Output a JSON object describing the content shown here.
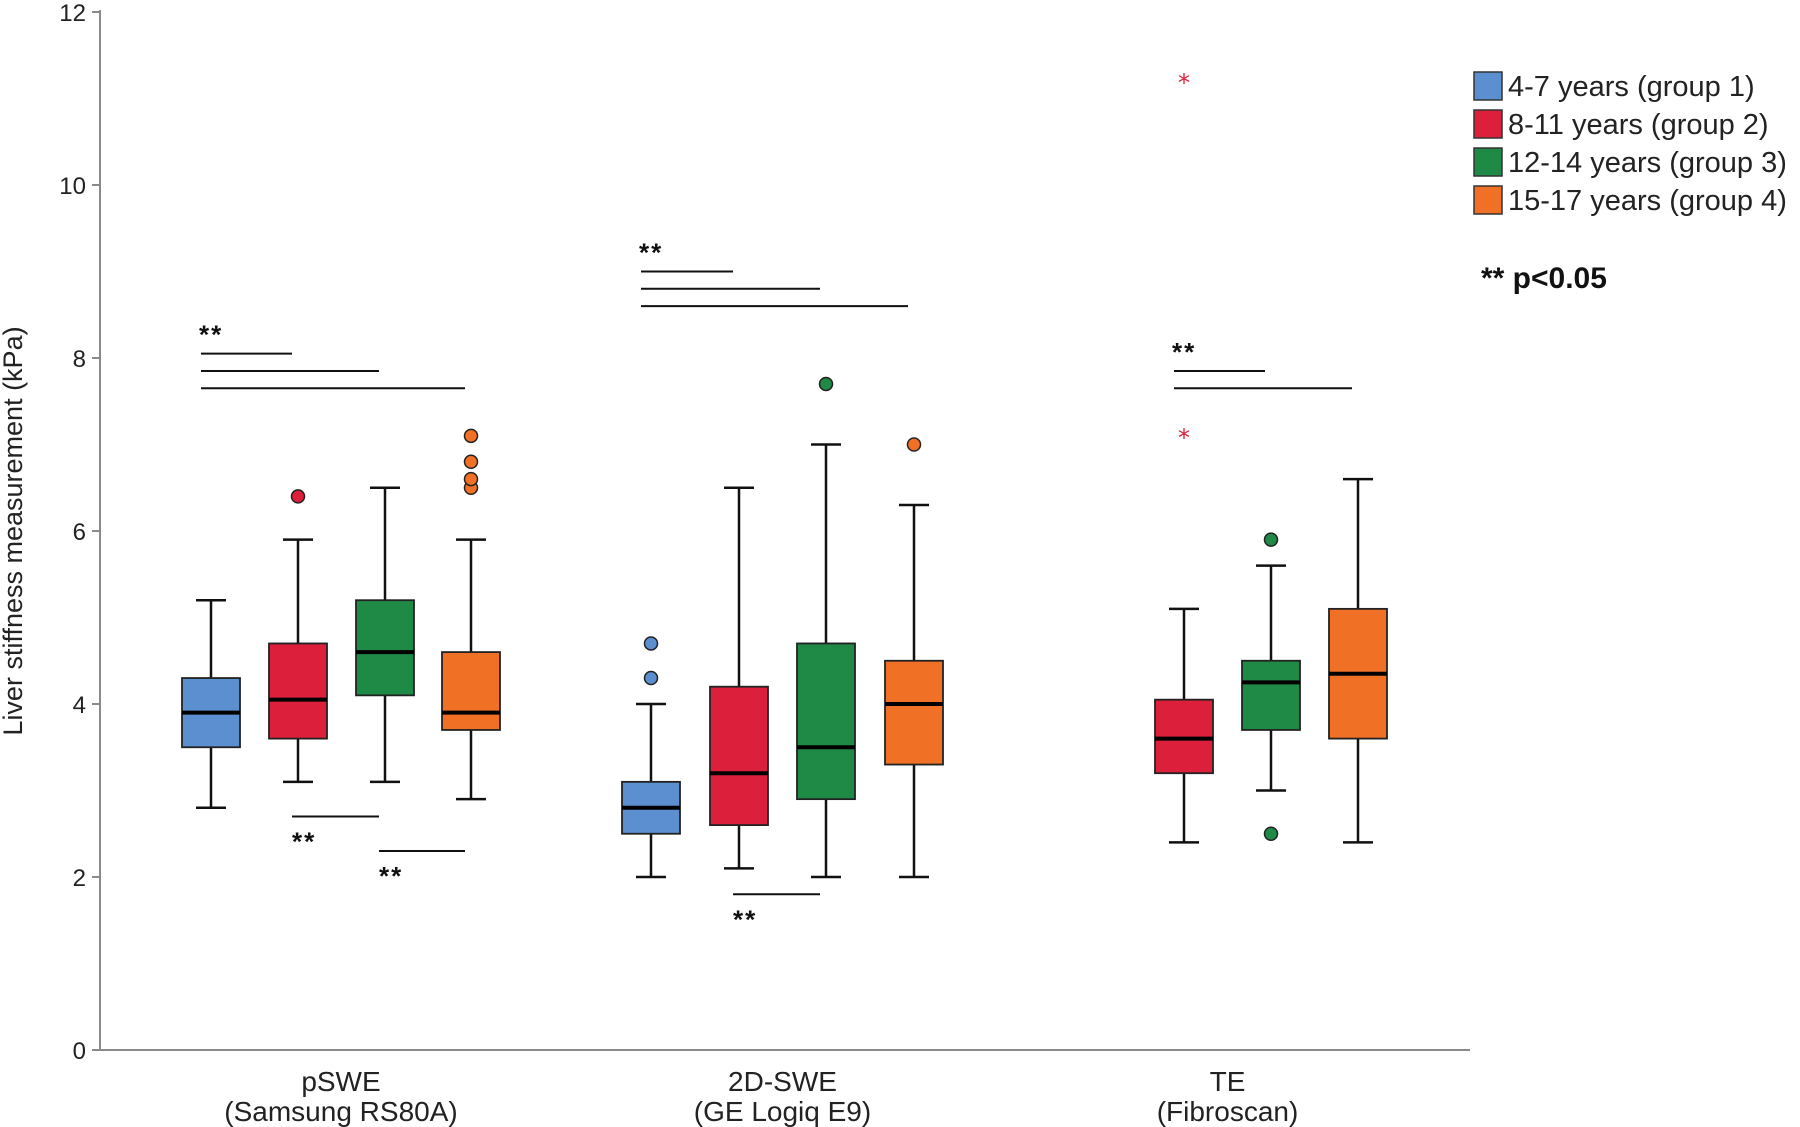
{
  "chart_data": {
    "type": "box",
    "title": "",
    "xlabel": "",
    "ylabel": "Liver stiffness measurement  (kPa)",
    "ylim": [
      0,
      12
    ],
    "yticks": [
      "0",
      "2",
      "4",
      "6",
      "8",
      "10",
      "12"
    ],
    "categories": [
      {
        "line1": "pSWE",
        "line2": "(Samsung RS80A)"
      },
      {
        "line1": "2D-SWE",
        "line2": "(GE Logiq E9)"
      },
      {
        "line1": "TE",
        "line2": "(Fibroscan)"
      }
    ],
    "series": [
      {
        "name": "4-7 years (group 1)",
        "color": "#5b8fd0"
      },
      {
        "name": "8-11 years (group 2)",
        "color": "#dc1f3a"
      },
      {
        "name": "12-14 years (group 3)",
        "color": "#1f8a45"
      },
      {
        "name": "15-17 years (group 4)",
        "color": "#f07126"
      }
    ],
    "boxes": [
      {
        "category": 0,
        "series": 0,
        "whisker_low": 2.8,
        "q1": 3.5,
        "median": 3.9,
        "q3": 4.3,
        "whisker_high": 5.2,
        "outliers": [],
        "extremes": []
      },
      {
        "category": 0,
        "series": 1,
        "whisker_low": 3.1,
        "q1": 3.6,
        "median": 4.05,
        "q3": 4.7,
        "whisker_high": 5.9,
        "outliers": [
          6.4
        ],
        "extremes": []
      },
      {
        "category": 0,
        "series": 2,
        "whisker_low": 3.1,
        "q1": 4.1,
        "median": 4.6,
        "q3": 5.2,
        "whisker_high": 6.5,
        "outliers": [],
        "extremes": []
      },
      {
        "category": 0,
        "series": 3,
        "whisker_low": 2.9,
        "q1": 3.7,
        "median": 3.9,
        "q3": 4.6,
        "whisker_high": 5.9,
        "outliers": [
          6.5,
          6.6,
          6.8,
          7.1
        ],
        "extremes": []
      },
      {
        "category": 1,
        "series": 0,
        "whisker_low": 2.0,
        "q1": 2.5,
        "median": 2.8,
        "q3": 3.1,
        "whisker_high": 4.0,
        "outliers": [
          4.3,
          4.7
        ],
        "extremes": []
      },
      {
        "category": 1,
        "series": 1,
        "whisker_low": 2.1,
        "q1": 2.6,
        "median": 3.2,
        "q3": 4.2,
        "whisker_high": 6.5,
        "outliers": [],
        "extremes": []
      },
      {
        "category": 1,
        "series": 2,
        "whisker_low": 2.0,
        "q1": 2.9,
        "median": 3.5,
        "q3": 4.7,
        "whisker_high": 7.0,
        "outliers": [
          7.7
        ],
        "extremes": []
      },
      {
        "category": 1,
        "series": 3,
        "whisker_low": 2.0,
        "q1": 3.3,
        "median": 4.0,
        "q3": 4.5,
        "whisker_high": 6.3,
        "outliers": [
          7.0
        ],
        "extremes": []
      },
      {
        "category": 2,
        "series": 1,
        "whisker_low": 2.4,
        "q1": 3.2,
        "median": 3.6,
        "q3": 4.05,
        "whisker_high": 5.1,
        "outliers": [],
        "extremes": [
          7.1,
          11.2
        ]
      },
      {
        "category": 2,
        "series": 2,
        "whisker_low": 3.0,
        "q1": 3.7,
        "median": 4.25,
        "q3": 4.5,
        "whisker_high": 5.6,
        "outliers": [
          2.5,
          5.9
        ],
        "extremes": []
      },
      {
        "category": 2,
        "series": 3,
        "whisker_low": 2.4,
        "q1": 3.6,
        "median": 4.35,
        "q3": 5.1,
        "whisker_high": 6.6,
        "outliers": [],
        "extremes": []
      }
    ],
    "significance": [
      {
        "category": 0,
        "from": 0,
        "to": 1,
        "label_position": "above"
      },
      {
        "category": 0,
        "from": 0,
        "to": 2,
        "label_position": "above"
      },
      {
        "category": 0,
        "from": 0,
        "to": 3,
        "label_position": "above"
      },
      {
        "category": 0,
        "from": 1,
        "to": 2,
        "label_position": "below"
      },
      {
        "category": 0,
        "from": 2,
        "to": 3,
        "label_position": "below"
      },
      {
        "category": 1,
        "from": 0,
        "to": 1,
        "label_position": "above"
      },
      {
        "category": 1,
        "from": 0,
        "to": 2,
        "label_position": "above"
      },
      {
        "category": 1,
        "from": 0,
        "to": 3,
        "label_position": "above"
      },
      {
        "category": 1,
        "from": 1,
        "to": 2,
        "label_position": "below"
      },
      {
        "category": 2,
        "from": 1,
        "to": 2,
        "label_position": "above"
      },
      {
        "category": 2,
        "from": 1,
        "to": 3,
        "label_position": "above"
      }
    ],
    "sig_marker": "**",
    "legend_position": "top-right",
    "legend_note": "** p<0.05",
    "grid": false
  }
}
